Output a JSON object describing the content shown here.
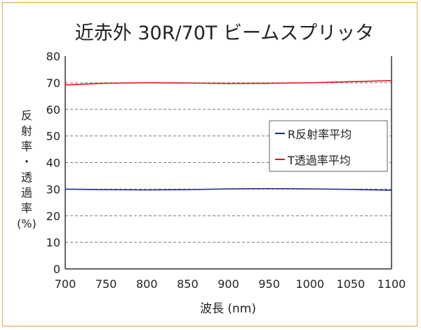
{
  "chart_data": {
    "type": "line",
    "title": "近赤外 30R/70T ビームスプリッタ",
    "xlabel": "波長 (nm)",
    "ylabel": [
      "反",
      "射",
      "率",
      "・",
      "透",
      "過",
      "率",
      "(%)"
    ],
    "xlim": [
      700,
      1100
    ],
    "ylim": [
      0,
      80
    ],
    "xticks": [
      700,
      750,
      800,
      850,
      900,
      950,
      1000,
      1050,
      1100
    ],
    "yticks": [
      0,
      10,
      20,
      30,
      40,
      50,
      60,
      70,
      80
    ],
    "grid": "horizontal dashed",
    "legend_position": "right-center",
    "series": [
      {
        "name": "R反射率平均",
        "color": "#1a2a8c",
        "x": [
          700,
          750,
          800,
          850,
          900,
          950,
          1000,
          1050,
          1100
        ],
        "y": [
          30.0,
          29.8,
          29.7,
          29.8,
          30.1,
          30.2,
          30.1,
          29.9,
          29.6
        ]
      },
      {
        "name": "T透過率平均",
        "color": "#e8101e",
        "x": [
          700,
          750,
          800,
          850,
          900,
          950,
          1000,
          1050,
          1100
        ],
        "y": [
          69.2,
          69.8,
          70.0,
          69.9,
          69.7,
          69.8,
          70.0,
          70.4,
          70.8
        ]
      }
    ]
  }
}
